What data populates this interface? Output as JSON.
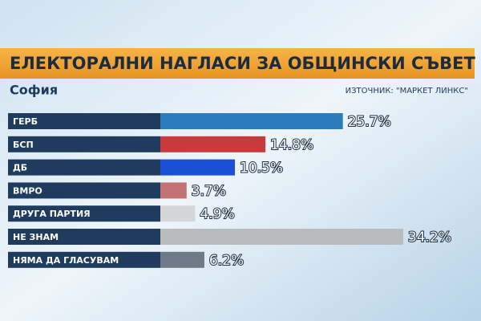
{
  "chart_data": {
    "type": "bar",
    "orientation": "horizontal",
    "title": "ЕЛЕКТОРАЛНИ НАГЛАСИ ЗА ОБЩИНСКИ СЪВЕТ",
    "subtitle": "София",
    "source": "ИЗТОЧНИК: \"МАРКЕТ ЛИНКС\"",
    "categories": [
      "ГЕРБ",
      "БСП",
      "ДБ",
      "ВМРО",
      "ДРУГА ПАРТИЯ",
      "НЕ ЗНАМ",
      "НЯМА ДА ГЛАСУВАМ"
    ],
    "values": [
      25.7,
      14.8,
      10.5,
      3.7,
      4.9,
      34.2,
      6.2
    ],
    "value_labels": [
      "25.7%",
      "14.8%",
      "10.5%",
      "3.7%",
      "4.9%",
      "34.2%",
      "6.2%"
    ],
    "colors": [
      "#2b7bbd",
      "#c93a3c",
      "#1b4fd8",
      "#c27272",
      "#d4d6d8",
      "#b9bbbe",
      "#6f7a88"
    ]
  }
}
